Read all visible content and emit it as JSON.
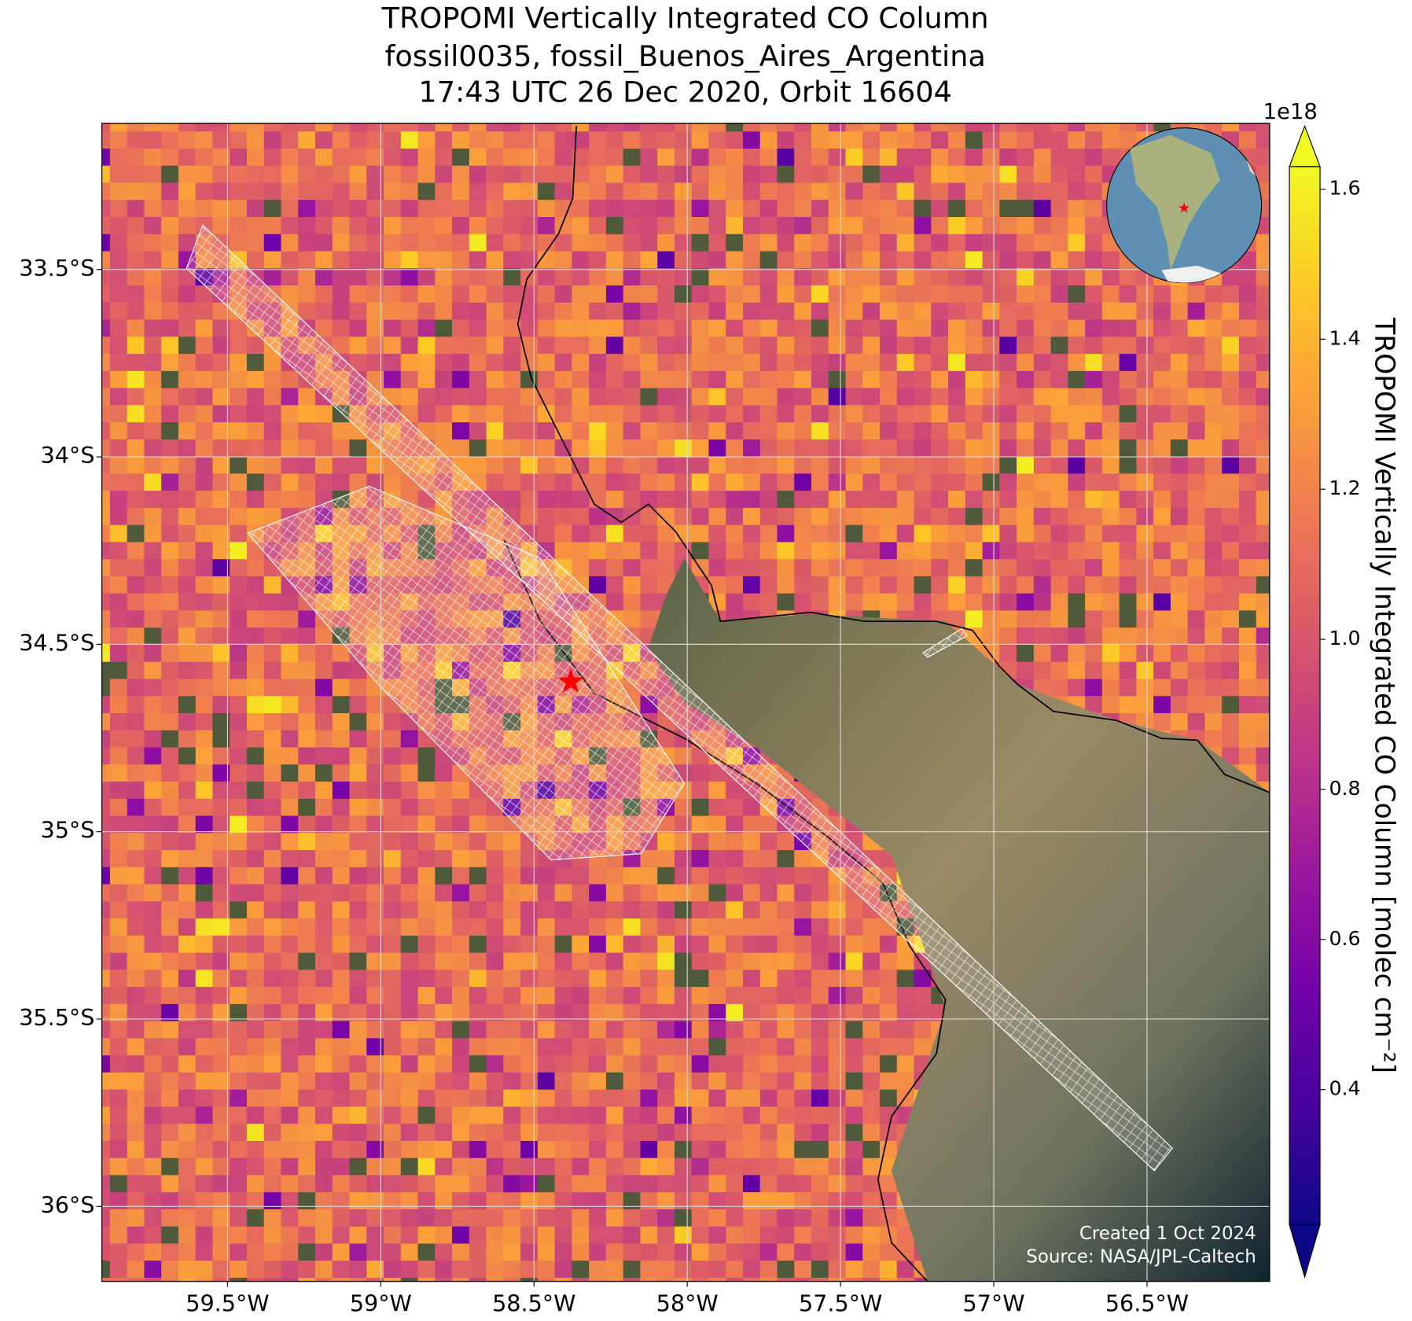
{
  "chart_data": {
    "type": "map",
    "title": [
      "TROPOMI Vertically Integrated CO Column",
      "fossil0035, fossil_Buenos_Aires_Argentina",
      "17:43 UTC 26 Dec 2020, Orbit 16604"
    ],
    "xlim": [
      -59.91,
      -56.1
    ],
    "ylim": [
      -36.2,
      -33.11
    ],
    "xticks": [
      {
        "value": -59.5,
        "label": "59.5°W"
      },
      {
        "value": -59,
        "label": "59°W"
      },
      {
        "value": -58.5,
        "label": "58.5°W"
      },
      {
        "value": -58,
        "label": "58°W"
      },
      {
        "value": -57.5,
        "label": "57.5°W"
      },
      {
        "value": -57,
        "label": "57°W"
      },
      {
        "value": -56.5,
        "label": "56.5°W"
      }
    ],
    "yticks": [
      {
        "value": -33.5,
        "label": "33.5°S"
      },
      {
        "value": -34,
        "label": "34°S"
      },
      {
        "value": -34.5,
        "label": "34.5°S"
      },
      {
        "value": -35,
        "label": "35°S"
      },
      {
        "value": -35.5,
        "label": "35.5°S"
      },
      {
        "value": -36,
        "label": "36°S"
      }
    ],
    "grid": true,
    "marker": {
      "lon": -58.38,
      "lat": -34.6,
      "color": "#ff0000"
    },
    "colorbar": {
      "label": "TROPOMI Vertically Integrated CO Column [molec cm⁻²]",
      "offset_label": "1e18",
      "colormap": "plasma",
      "lim": [
        0.22,
        1.63
      ],
      "ticks": [
        0.4,
        0.6,
        0.8,
        1.0,
        1.2,
        1.4,
        1.6
      ],
      "extend": "both"
    },
    "credits": [
      "Created 1 Oct 2024",
      "Source: NASA/JPL-Caltech"
    ]
  }
}
